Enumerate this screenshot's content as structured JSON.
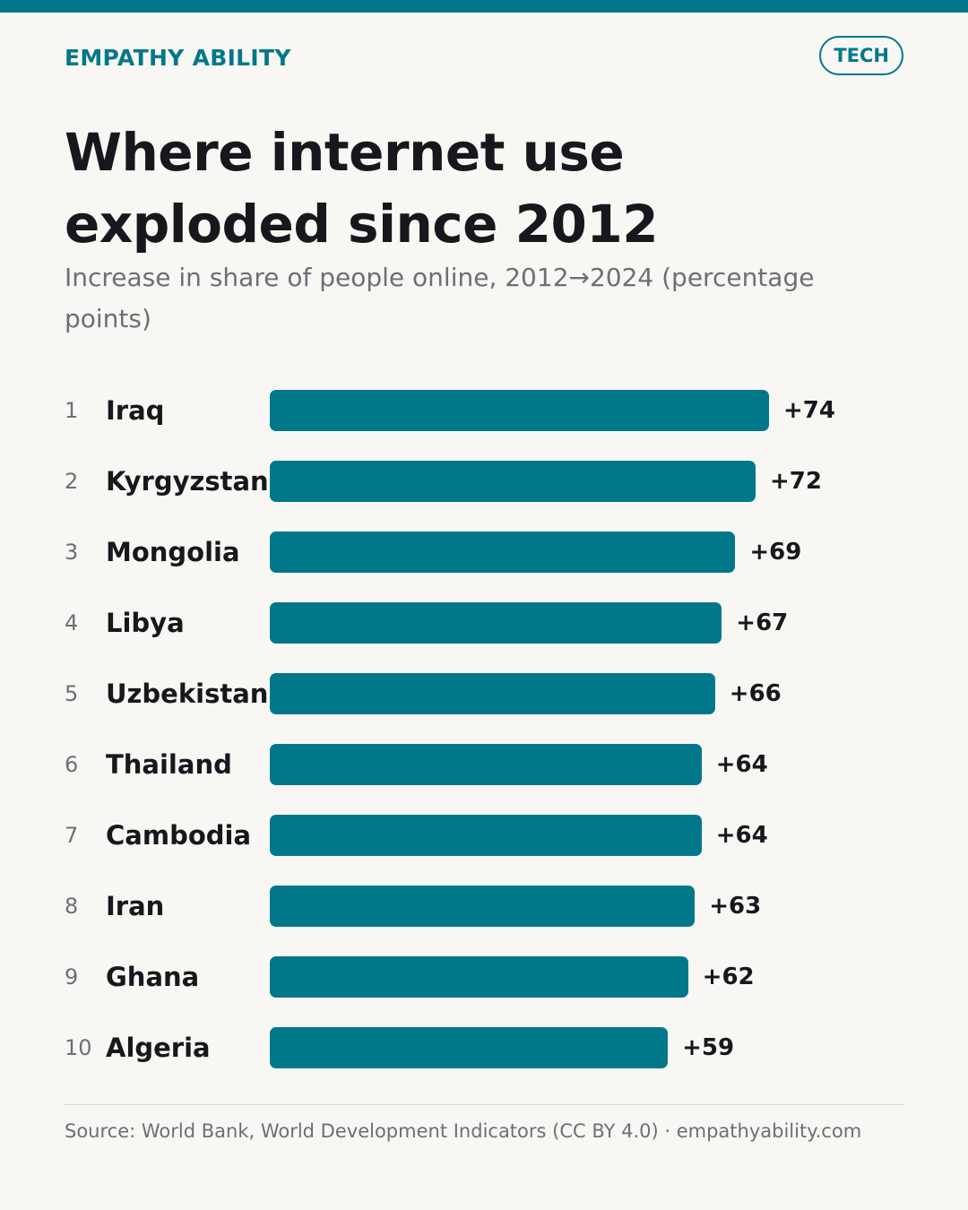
{
  "header": {
    "brand": "EMPATHY ABILITY",
    "tag": "TECH"
  },
  "chart_data": {
    "type": "bar",
    "orientation": "horizontal",
    "title": "Where internet use exploded since 2012",
    "subtitle": "Increase in share of people online, 2012→2024 (percentage points)",
    "ranks": [
      "1",
      "2",
      "3",
      "4",
      "5",
      "6",
      "7",
      "8",
      "9",
      "10"
    ],
    "categories": [
      "Iraq",
      "Kyrgyzstan",
      "Mongolia",
      "Libya",
      "Uzbekistan",
      "Thailand",
      "Cambodia",
      "Iran",
      "Ghana",
      "Algeria"
    ],
    "values": [
      74,
      72,
      69,
      67,
      66,
      64,
      64,
      63,
      62,
      59
    ],
    "labels": [
      "+74",
      "+72",
      "+69",
      "+67",
      "+66",
      "+64",
      "+64",
      "+63",
      "+62",
      "+59"
    ],
    "bar_color": "#00788a"
  },
  "footer": {
    "source": "Source: World Bank, World Development Indicators (CC BY 4.0) · empathyability.com"
  }
}
